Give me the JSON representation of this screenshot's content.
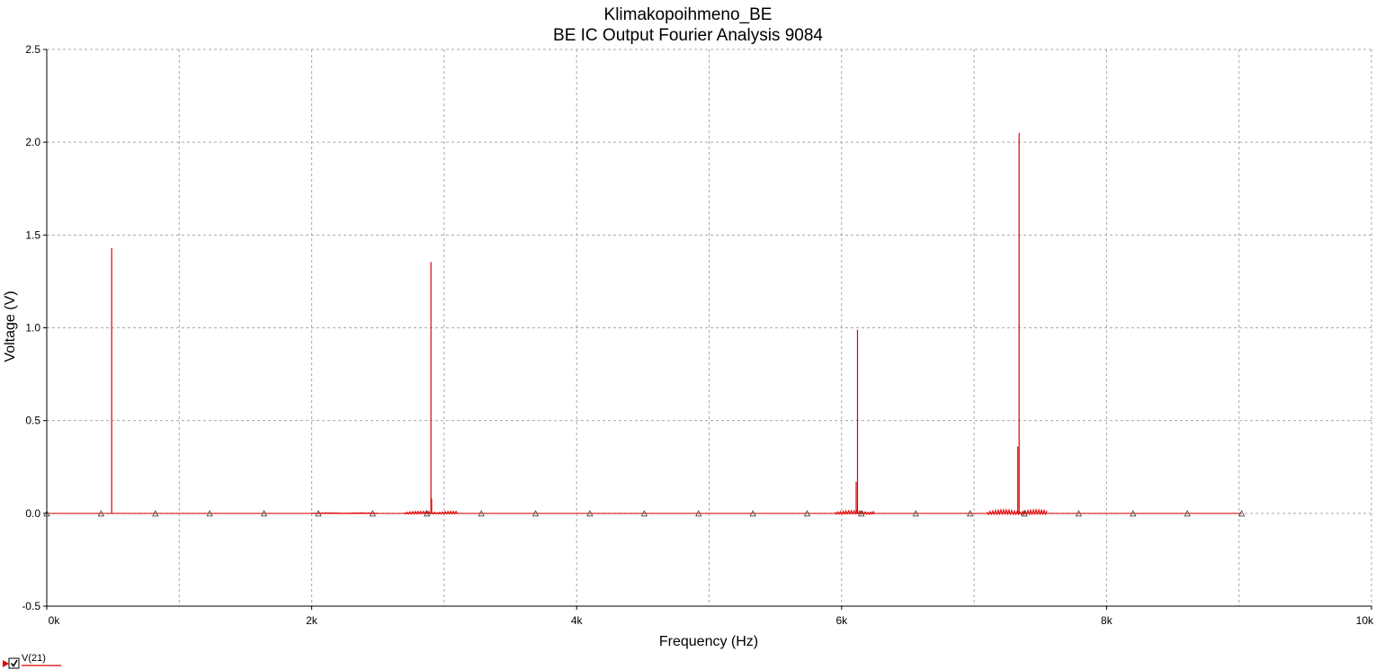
{
  "chart_data": {
    "type": "line",
    "title": "Klimakopoihmeno_BE",
    "subtitle": "BE IC Output Fourier Analysis 9084",
    "xlabel": "Frequency (Hz)",
    "ylabel": "Voltage (V)",
    "xlim": [
      0,
      10000
    ],
    "ylim": [
      -0.5,
      2.5
    ],
    "x_ticks": [
      {
        "value": 0,
        "label": "0k"
      },
      {
        "value": 2000,
        "label": "2k"
      },
      {
        "value": 4000,
        "label": "4k"
      },
      {
        "value": 6000,
        "label": "6k"
      },
      {
        "value": 8000,
        "label": "8k"
      },
      {
        "value": 10000,
        "label": "10k"
      }
    ],
    "x_grid": [
      1000,
      2000,
      3000,
      4000,
      5000,
      6000,
      7000,
      8000,
      9000
    ],
    "y_ticks": [
      {
        "value": 2.5,
        "label": "2.5"
      },
      {
        "value": 2.0,
        "label": "2.0"
      },
      {
        "value": 1.5,
        "label": "1.5"
      },
      {
        "value": 1.0,
        "label": "1.0"
      },
      {
        "value": 0.5,
        "label": "0.5"
      },
      {
        "value": 0.0,
        "label": "0.0"
      },
      {
        "value": -0.5,
        "label": "-0.5"
      }
    ],
    "grid": true,
    "legend_position": "bottom-left",
    "series": [
      {
        "name": "V(21)",
        "color": "#e00000",
        "peaks": [
          {
            "x": 490,
            "y": 1.43
          },
          {
            "x": 2900,
            "y": 1.355
          },
          {
            "x": 2905,
            "y": 0.08
          },
          {
            "x": 6120,
            "y": 0.99
          },
          {
            "x": 6110,
            "y": 0.17
          },
          {
            "x": 7340,
            "y": 2.05
          },
          {
            "x": 7330,
            "y": 0.36
          }
        ],
        "noise_bands": [
          {
            "x_start": 2000,
            "x_end": 2500,
            "amplitude": 0.004
          },
          {
            "x_start": 2700,
            "x_end": 3100,
            "amplitude": 0.012
          },
          {
            "x_start": 5950,
            "x_end": 6250,
            "amplitude": 0.015
          },
          {
            "x_start": 7100,
            "x_end": 7550,
            "amplitude": 0.02
          }
        ],
        "marker_x": [
          0,
          410,
          820,
          1230,
          1640,
          2050,
          2460,
          2870,
          3280,
          3690,
          4100,
          4510,
          4920,
          5330,
          5740,
          6150,
          6560,
          6970,
          7380,
          7790,
          8200,
          8610,
          9020
        ],
        "marker_y": 0
      }
    ]
  }
}
